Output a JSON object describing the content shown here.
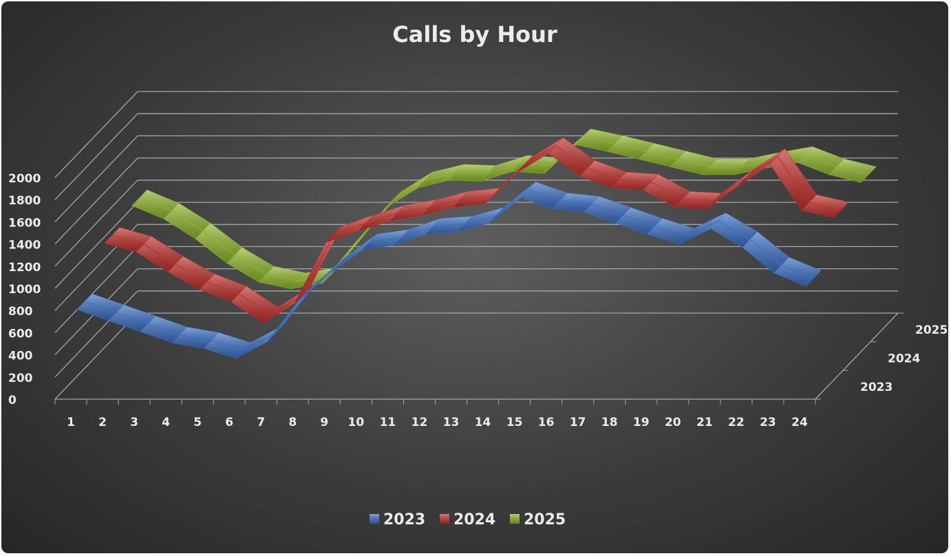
{
  "chart_data": {
    "type": "line",
    "title": "Calls by Hour",
    "categories": [
      "1",
      "2",
      "3",
      "4",
      "5",
      "6",
      "7",
      "8",
      "9",
      "10",
      "11",
      "12",
      "13",
      "14",
      "15",
      "16",
      "17",
      "18",
      "19",
      "20",
      "21",
      "22",
      "23",
      "24"
    ],
    "series": [
      {
        "name": "2023",
        "color": "#3a6fc4",
        "values": [
          750,
          650,
          550,
          450,
          400,
          310,
          460,
          830,
          1080,
          1290,
          1330,
          1430,
          1450,
          1530,
          1760,
          1660,
          1630,
          1530,
          1430,
          1340,
          1480,
          1310,
          1080,
          960
        ]
      },
      {
        "name": "2024",
        "color": "#c0302c",
        "values": [
          1090,
          1010,
          830,
          670,
          560,
          370,
          550,
          1100,
          1200,
          1290,
          1340,
          1415,
          1445,
          1725,
          1900,
          1695,
          1590,
          1570,
          1415,
          1400,
          1610,
          1800,
          1385,
          1320
        ]
      },
      {
        "name": "2025",
        "color": "#8fb52a",
        "values": [
          1170,
          1050,
          870,
          650,
          480,
          420,
          470,
          820,
          1150,
          1330,
          1400,
          1390,
          1480,
          1460,
          1720,
          1660,
          1590,
          1520,
          1450,
          1450,
          1510,
          1560,
          1450,
          1380
        ]
      }
    ],
    "ylim": [
      0,
      2000
    ],
    "yticks": [
      0,
      200,
      400,
      600,
      800,
      1000,
      1200,
      1400,
      1600,
      1800,
      2000
    ],
    "grid": true,
    "legend": "bottom"
  }
}
